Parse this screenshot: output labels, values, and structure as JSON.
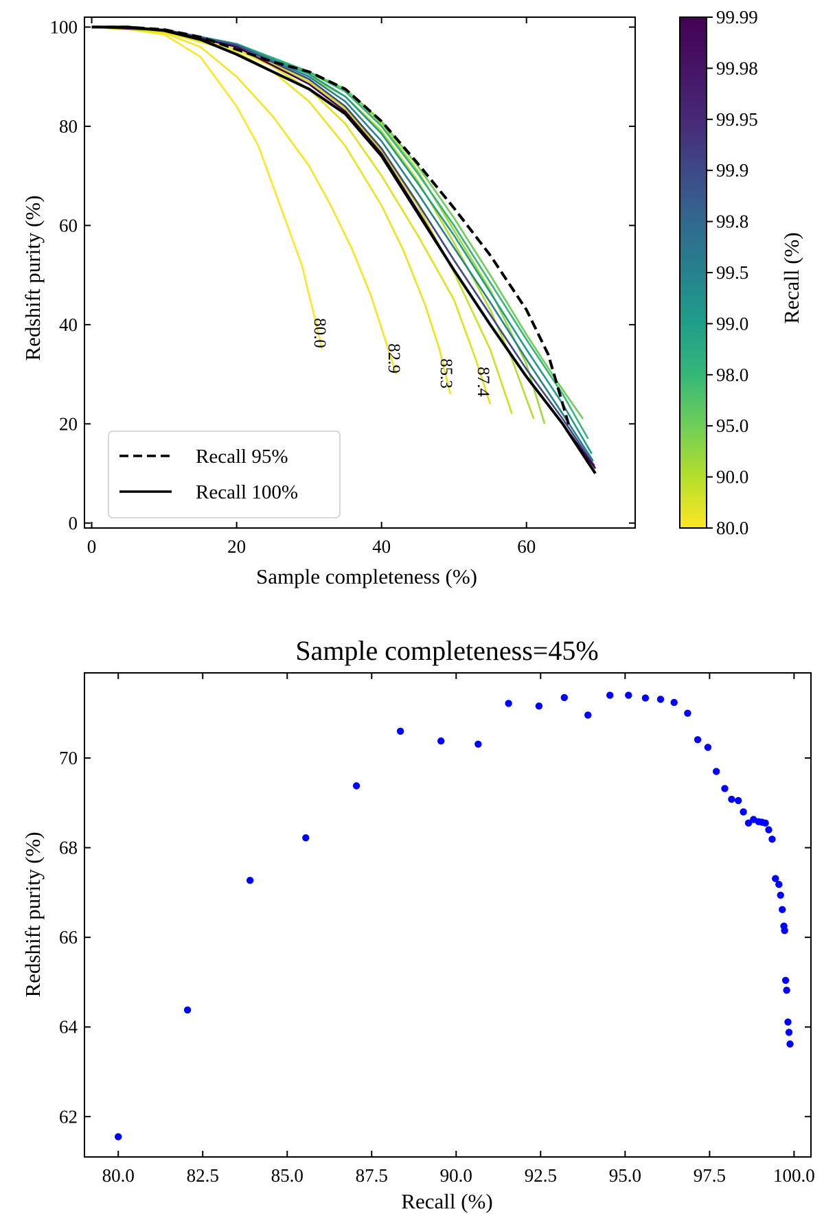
{
  "chart_data": [
    {
      "type": "line",
      "xlabel": "Sample completeness (%)",
      "ylabel": "Redshift purity (%)",
      "xlim": [
        -1,
        75
      ],
      "ylim": [
        -1,
        102
      ],
      "xticks": [
        0,
        20,
        40,
        60
      ],
      "yticks": [
        0,
        20,
        40,
        60,
        80,
        100
      ],
      "legend_position": "bottom-left",
      "legend": [
        {
          "label": "Recall 95%",
          "style": "dashed",
          "color": "#000000"
        },
        {
          "label": "Recall 100%",
          "style": "solid",
          "color": "#000000"
        }
      ],
      "colorbar": {
        "label": "Recall (%)",
        "colormap": "viridis_r",
        "tick_labels": [
          "80.0",
          "90.0",
          "95.0",
          "98.0",
          "99.0",
          "99.5",
          "99.8",
          "99.9",
          "99.95",
          "99.98",
          "99.99"
        ]
      },
      "curve_annotations": [
        "80.0",
        "82.9",
        "85.3",
        "87.4"
      ],
      "series": [
        {
          "name": "Recall 80.0",
          "color": "#fde725",
          "x": [
            0,
            5,
            10,
            15,
            20,
            23,
            25,
            27,
            29,
            30,
            31,
            31.8
          ],
          "y": [
            100,
            99.6,
            98.5,
            94,
            84,
            76,
            68,
            60,
            52,
            46,
            40,
            35
          ]
        },
        {
          "name": "Recall 82.9",
          "color": "#f5e620",
          "x": [
            0,
            5,
            10,
            15,
            20,
            25,
            30,
            33,
            36,
            38.5,
            40.5,
            42
          ],
          "y": [
            100,
            99.7,
            98.8,
            96,
            90,
            82,
            72,
            64,
            55,
            46,
            37,
            30
          ]
        },
        {
          "name": "Recall 85.3",
          "color": "#ece51b",
          "x": [
            0,
            10,
            20,
            25,
            30,
            35,
            40,
            43,
            46,
            48,
            49.5
          ],
          "y": [
            100,
            99,
            95,
            91,
            85,
            76,
            64,
            55,
            44,
            35,
            26
          ]
        },
        {
          "name": "Recall 87.4",
          "color": "#dfe318",
          "x": [
            0,
            10,
            20,
            25,
            30,
            35,
            40,
            45,
            50,
            53,
            55
          ],
          "y": [
            100,
            99.1,
            95.5,
            92,
            87.5,
            80.5,
            70,
            58,
            45,
            33,
            24
          ]
        },
        {
          "name": "Recall 89",
          "color": "#cde11d",
          "x": [
            0,
            10,
            20,
            30,
            35,
            40,
            45,
            50,
            55,
            58
          ],
          "y": [
            100,
            99.2,
            96,
            89,
            83.5,
            75,
            64,
            50.5,
            35,
            22
          ]
        },
        {
          "name": "Recall 90",
          "color": "#b5de2b",
          "x": [
            0,
            10,
            20,
            30,
            35,
            40,
            45,
            50,
            55,
            58,
            61
          ],
          "y": [
            100,
            99.3,
            96.3,
            90,
            86,
            79,
            69,
            56.5,
            43,
            33,
            21
          ]
        },
        {
          "name": "Recall 92",
          "color": "#9fda3a",
          "x": [
            0,
            10,
            20,
            30,
            35,
            40,
            45,
            50,
            55,
            60,
            62.5
          ],
          "y": [
            100,
            99.4,
            96.5,
            90.8,
            87,
            80.5,
            71,
            59,
            47,
            32,
            20
          ]
        },
        {
          "name": "Recall 95",
          "color": "#6ece58",
          "x": [
            0,
            10,
            20,
            30,
            35,
            40,
            45,
            50,
            55,
            60,
            64,
            67.8
          ],
          "y": [
            100,
            99.5,
            96.6,
            91,
            87.5,
            81,
            72,
            61.5,
            50,
            38,
            29,
            21
          ]
        },
        {
          "name": "Recall 98",
          "color": "#35b779",
          "x": [
            0,
            10,
            20,
            30,
            35,
            40,
            45,
            50,
            55,
            60,
            65,
            68.5
          ],
          "y": [
            100,
            99.5,
            96.6,
            91,
            87,
            80,
            70.5,
            60,
            48.5,
            37,
            26,
            17
          ]
        },
        {
          "name": "Recall 99",
          "color": "#1f9e89",
          "x": [
            0,
            10,
            20,
            30,
            35,
            40,
            45,
            50,
            55,
            60,
            65,
            69
          ],
          "y": [
            100,
            99.5,
            96.6,
            90.5,
            86,
            78.5,
            68.5,
            58,
            46.5,
            35,
            24,
            14
          ]
        },
        {
          "name": "Recall 99.5",
          "color": "#26828e",
          "x": [
            0,
            10,
            20,
            30,
            35,
            40,
            45,
            50,
            55,
            60,
            65,
            69.2
          ],
          "y": [
            100,
            99.5,
            96.5,
            90,
            85,
            77,
            66.5,
            55.5,
            44.5,
            33,
            22,
            12.5
          ]
        },
        {
          "name": "Recall 99.9",
          "color": "#3e4989",
          "x": [
            0,
            10,
            20,
            30,
            35,
            40,
            45,
            50,
            55,
            60,
            65,
            69.4
          ],
          "y": [
            100,
            99.5,
            96.3,
            89.5,
            84,
            75.5,
            64.5,
            53,
            42,
            31,
            21,
            11.5
          ]
        },
        {
          "name": "Recall 99.99",
          "color": "#440154",
          "x": [
            0,
            10,
            20,
            30,
            35,
            40,
            45,
            50,
            55,
            60,
            65,
            69.5
          ],
          "y": [
            100,
            99.4,
            96,
            88.5,
            83,
            74.5,
            63,
            51,
            40,
            29.5,
            20,
            11
          ]
        },
        {
          "name": "Recall 95% (dashed)",
          "color": "#000000",
          "dash": true,
          "x": [
            0,
            5,
            10,
            15,
            20,
            25,
            30,
            35,
            40,
            45,
            50,
            55,
            60,
            63,
            66
          ],
          "y": [
            100,
            100,
            99.5,
            98,
            95.5,
            93,
            91,
            87.5,
            81,
            72.5,
            63.5,
            54,
            43,
            34,
            19
          ]
        },
        {
          "name": "Recall 100% (solid)",
          "color": "#000000",
          "dash": false,
          "x": [
            0,
            5,
            10,
            15,
            20,
            25,
            30,
            35,
            40,
            45,
            50,
            55,
            60,
            65,
            69.5
          ],
          "y": [
            100,
            100,
            99.3,
            97.5,
            94.5,
            91,
            87.5,
            82.5,
            74,
            62.5,
            51,
            40,
            29.5,
            20,
            10
          ]
        }
      ]
    },
    {
      "type": "scatter",
      "title": "Sample completeness=45%",
      "xlabel": "Recall (%)",
      "ylabel": "Redshift purity (%)",
      "xlim": [
        79,
        100.5
      ],
      "ylim": [
        61.1,
        71.9
      ],
      "xticks": [
        "80.0",
        "82.5",
        "85.0",
        "87.5",
        "90.0",
        "92.5",
        "95.0",
        "97.5",
        "100.0"
      ],
      "yticks": [
        "62",
        "64",
        "66",
        "68",
        "70"
      ],
      "marker_color": "#0000ff",
      "x": [
        80.0,
        82.05,
        83.9,
        85.55,
        87.05,
        88.35,
        89.55,
        90.65,
        91.55,
        92.45,
        93.2,
        93.9,
        94.55,
        95.1,
        95.6,
        96.05,
        96.45,
        96.85,
        97.15,
        97.45,
        97.7,
        97.95,
        98.15,
        98.35,
        98.5,
        98.65,
        98.8,
        98.95,
        99.05,
        99.15,
        99.25,
        99.35,
        99.45,
        99.55,
        99.6,
        99.65,
        99.7,
        99.72,
        99.75,
        99.78,
        99.82,
        99.85,
        99.88
      ],
      "y": [
        61.55,
        64.38,
        67.27,
        68.22,
        69.38,
        70.6,
        70.38,
        70.31,
        71.22,
        71.16,
        71.35,
        70.96,
        71.4,
        71.4,
        71.34,
        71.31,
        71.24,
        71.0,
        70.41,
        70.24,
        69.7,
        69.32,
        69.08,
        69.05,
        68.8,
        68.55,
        68.63,
        68.58,
        68.57,
        68.55,
        68.4,
        68.19,
        67.31,
        67.18,
        66.94,
        66.62,
        66.25,
        66.15,
        65.04,
        64.82,
        64.11,
        63.88,
        63.62
      ]
    }
  ]
}
